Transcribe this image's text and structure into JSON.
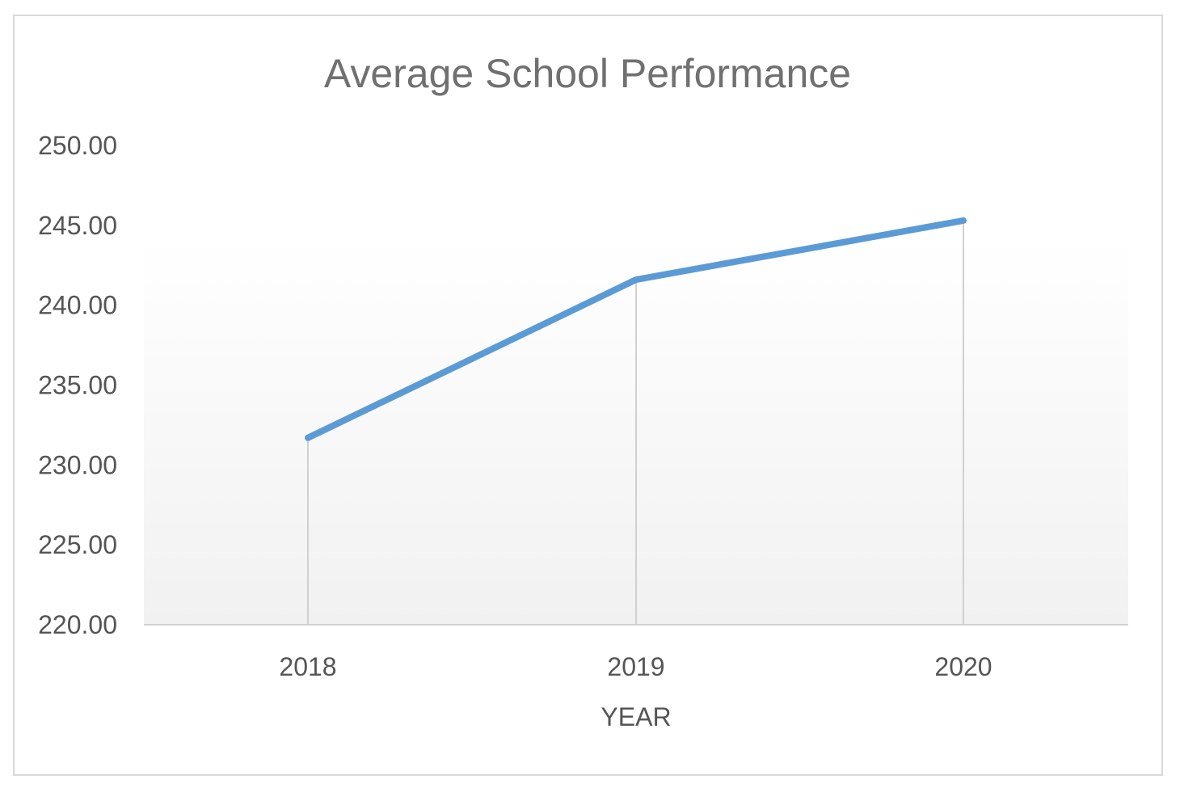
{
  "chart_data": {
    "type": "line",
    "title": "Average School Performance",
    "xlabel": "YEAR",
    "ylabel": "",
    "categories": [
      "2018",
      "2019",
      "2020"
    ],
    "series": [
      {
        "values": [
          231.7,
          241.6,
          245.3
        ]
      }
    ],
    "ylim": [
      220,
      250
    ],
    "ytick_step": 5,
    "ytick_labels": [
      "220.00",
      "225.00",
      "230.00",
      "235.00",
      "240.00",
      "245.00",
      "250.00"
    ],
    "drop_lines": true,
    "grid": false,
    "legend": "none",
    "colors": {
      "line": "#5b9bd5",
      "drop_line": "#d0d0d0",
      "axis": "#d0d0d0",
      "plot_bg_top": "#ffffff",
      "plot_bg_bottom": "#f1f1f1"
    }
  }
}
